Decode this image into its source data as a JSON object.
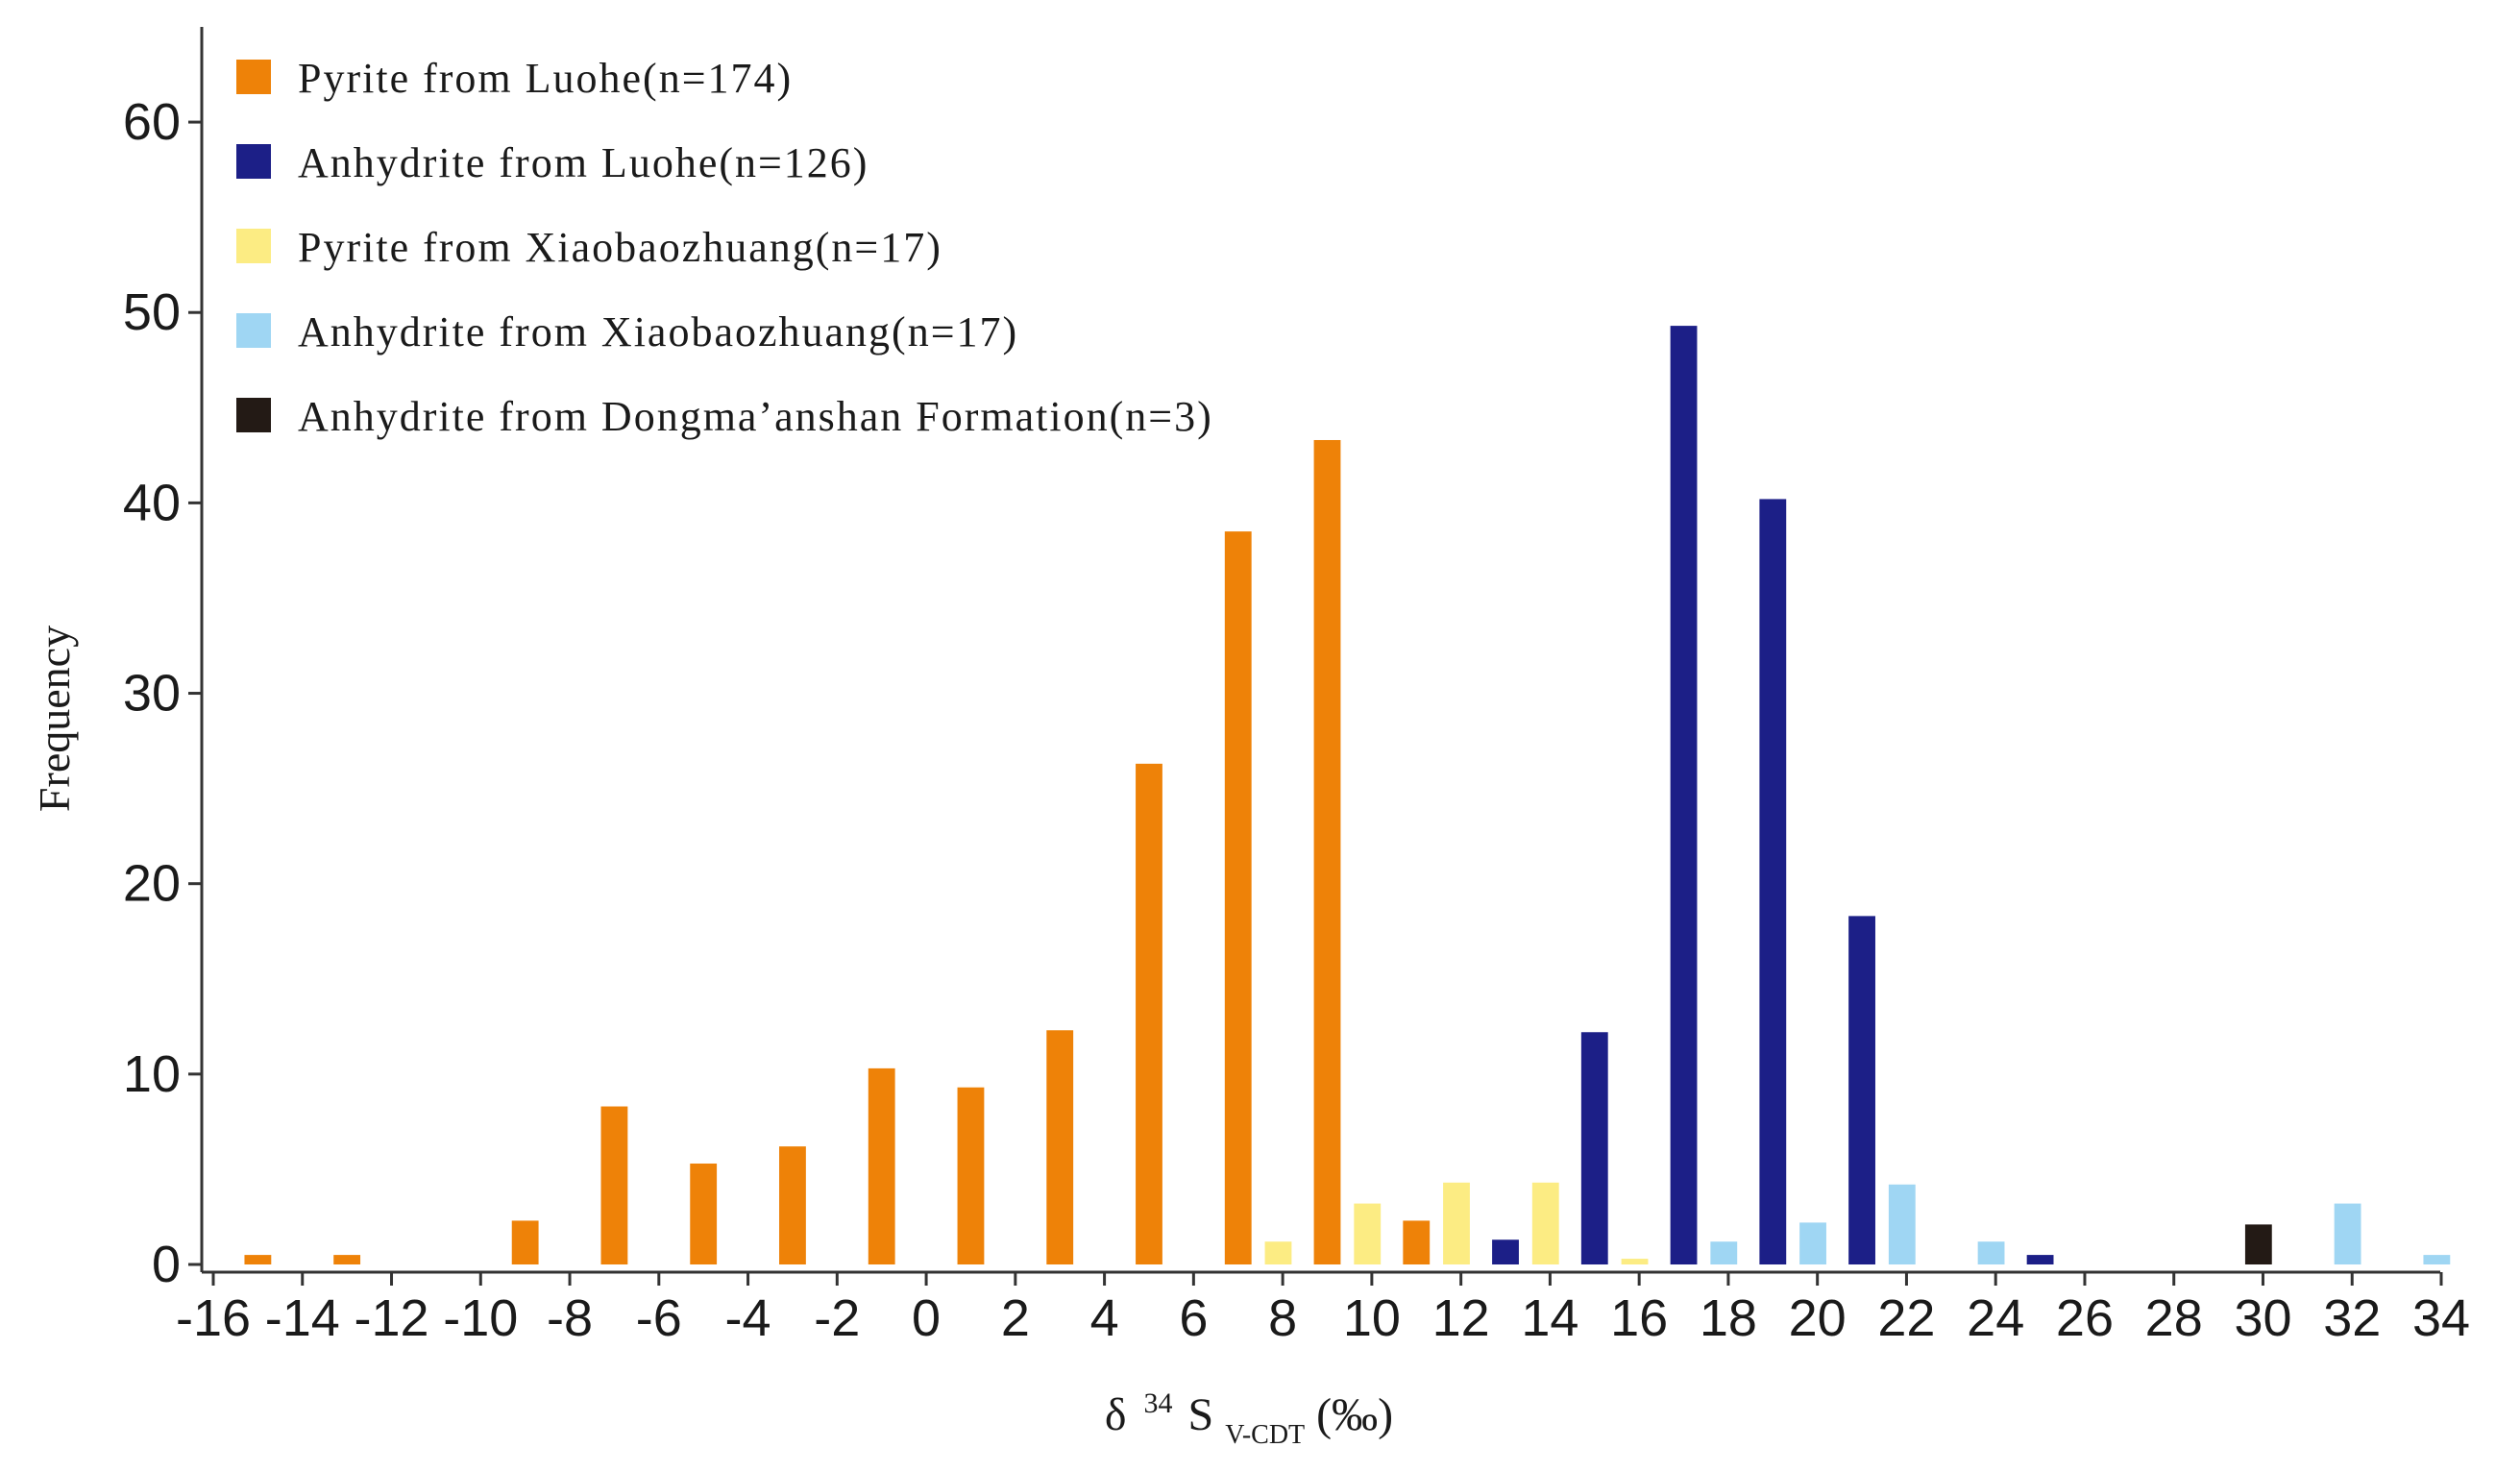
{
  "chart_data": {
    "type": "bar",
    "ylabel": "Frequency",
    "xlabel": {
      "delta": "δ",
      "superscript": "34",
      "symbol": "S",
      "subscript": "V-CDT",
      "unit": "(‰)"
    },
    "ylim": [
      0,
      65
    ],
    "yticks": [
      0,
      10,
      20,
      30,
      40,
      50,
      60
    ],
    "xlim": [
      -16,
      34
    ],
    "xticks": [
      -16,
      -14,
      -12,
      -10,
      -8,
      -6,
      -4,
      -2,
      0,
      2,
      4,
      6,
      8,
      10,
      12,
      14,
      16,
      18,
      20,
      22,
      24,
      26,
      28,
      30,
      32,
      34
    ],
    "bar_width": 0.6,
    "series": [
      {
        "name": "Pyrite from Luohe(n=174)",
        "color": "#EE8208",
        "points": [
          {
            "x": -15,
            "y": 0.5
          },
          {
            "x": -13,
            "y": 0.5
          },
          {
            "x": -9,
            "y": 2.3
          },
          {
            "x": -7,
            "y": 8.3
          },
          {
            "x": -5,
            "y": 5.3
          },
          {
            "x": -3,
            "y": 6.2
          },
          {
            "x": -1,
            "y": 10.3
          },
          {
            "x": 1,
            "y": 9.3
          },
          {
            "x": 3,
            "y": 12.3
          },
          {
            "x": 5,
            "y": 26.3
          },
          {
            "x": 7,
            "y": 38.5
          },
          {
            "x": 9,
            "y": 43.3
          },
          {
            "x": 11,
            "y": 2.3
          }
        ]
      },
      {
        "name": "Anhydrite from Luohe(n=126)",
        "color": "#1C1F87",
        "points": [
          {
            "x": 13,
            "y": 1.3
          },
          {
            "x": 15,
            "y": 12.2
          },
          {
            "x": 17,
            "y": 49.3
          },
          {
            "x": 19,
            "y": 40.2
          },
          {
            "x": 21,
            "y": 18.3
          },
          {
            "x": 25,
            "y": 0.5
          }
        ]
      },
      {
        "name": "Pyrite from Xiaobaozhuang(n=17)",
        "color": "#FCEC83",
        "points": [
          {
            "x": 7.9,
            "y": 1.2
          },
          {
            "x": 9.9,
            "y": 3.2
          },
          {
            "x": 11.9,
            "y": 4.3
          },
          {
            "x": 13.9,
            "y": 4.3
          },
          {
            "x": 15.9,
            "y": 0.3
          }
        ]
      },
      {
        "name": "Anhydrite from Xiaobaozhuang(n=17)",
        "color": "#9FD6F3",
        "points": [
          {
            "x": 17.9,
            "y": 1.2
          },
          {
            "x": 19.9,
            "y": 2.2
          },
          {
            "x": 21.9,
            "y": 4.2
          },
          {
            "x": 23.9,
            "y": 1.2
          },
          {
            "x": 31.9,
            "y": 3.2
          },
          {
            "x": 33.9,
            "y": 0.5
          }
        ]
      },
      {
        "name": "Anhydrite from Dongma’anshan Formation(n=3)",
        "color": "#231A15",
        "points": [
          {
            "x": 29.9,
            "y": 2.1
          }
        ]
      }
    ],
    "legend_position": "top-left"
  }
}
